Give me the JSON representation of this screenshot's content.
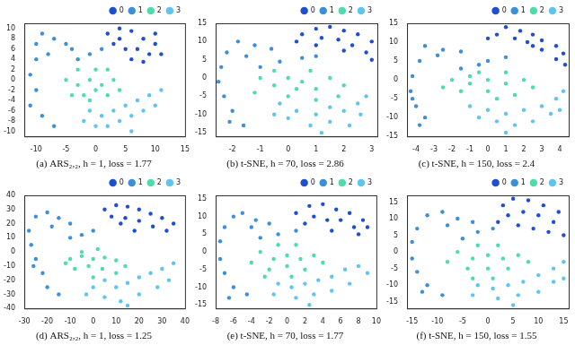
{
  "chart_data": [
    {
      "type": "scatter",
      "title": "(a) ARS₂,₂, h = 1, loss = 1.77",
      "xlim": [
        -12,
        15
      ],
      "xticks": [
        -10,
        -5,
        0,
        5,
        10,
        15
      ],
      "ylim": [
        -11,
        11
      ],
      "yticks": [
        -10,
        -8,
        -6,
        -4,
        -2,
        0,
        2,
        4,
        6,
        8,
        10
      ],
      "grid": false,
      "legend": "upper right",
      "marker": "circle",
      "series": [
        {
          "name": "0",
          "color": "#1f4fd1",
          "x": [
            2,
            4,
            6,
            8,
            10,
            3,
            5,
            7,
            9,
            11,
            6,
            4,
            8,
            10
          ],
          "values": [
            9,
            10,
            9.5,
            8,
            7,
            7,
            6,
            6,
            5,
            5,
            4,
            8,
            3.5,
            9
          ]
        },
        {
          "name": "1",
          "color": "#3d8fd9",
          "x": [
            -9,
            -7,
            -5,
            -10,
            -8,
            -11,
            -10,
            -11,
            -9,
            -7,
            -3,
            -1,
            1,
            -4,
            -10
          ],
          "values": [
            9,
            8,
            7,
            4,
            5,
            1,
            -2,
            -5,
            -7,
            -9,
            4,
            5,
            6,
            6,
            7
          ]
        },
        {
          "name": "2",
          "color": "#4fdbb0",
          "x": [
            -5,
            -3,
            -1,
            1,
            3,
            -4,
            -2,
            0,
            2,
            -3,
            0,
            2,
            -1,
            4
          ],
          "values": [
            0,
            -1,
            0,
            -1,
            0,
            -3,
            -3,
            -2,
            -3,
            2,
            2,
            2,
            -4,
            -2
          ]
        },
        {
          "name": "3",
          "color": "#5ec6ee",
          "x": [
            -1,
            1,
            3,
            5,
            7,
            9,
            11,
            2,
            4,
            6,
            8,
            0,
            10,
            -2,
            6
          ],
          "values": [
            -6,
            -7,
            -6,
            -5,
            -4,
            -3,
            -2,
            -9,
            -8,
            -7,
            -6,
            -9,
            -5,
            -8,
            -10
          ]
        }
      ]
    },
    {
      "type": "scatter",
      "title": "(b) t-SNE, h = 70, loss = 2.86",
      "xlim": [
        -2.6,
        3.2
      ],
      "xticks": [
        -2,
        -1,
        0,
        1,
        2,
        3
      ],
      "ylim": [
        -16,
        15
      ],
      "yticks": [
        -15,
        -10,
        -5,
        0,
        5,
        10,
        15
      ],
      "grid": false,
      "legend": "upper right",
      "marker": "circle",
      "series": [
        {
          "name": "0",
          "color": "#1f4fd1",
          "x": [
            0.5,
            1,
            1.5,
            2,
            2.5,
            3,
            1.2,
            1.8,
            2.3,
            2.8,
            1,
            2,
            3,
            0.3
          ],
          "values": [
            12,
            13.5,
            14,
            13,
            12,
            10,
            11,
            10.5,
            9,
            7,
            9,
            7.5,
            5,
            10
          ]
        },
        {
          "name": "1",
          "color": "#3d8fd9",
          "x": [
            -1.8,
            -1.2,
            -0.6,
            -2.2,
            -2.4,
            -2.5,
            -2.3,
            -2,
            -1.6,
            -1,
            -0.3,
            0.5,
            -1.5,
            -2.1,
            1
          ],
          "values": [
            10,
            9,
            8,
            7,
            3,
            -1,
            -5,
            -9,
            -13,
            3,
            4.5,
            5.5,
            6,
            -12,
            6
          ]
        },
        {
          "name": "2",
          "color": "#4fdbb0",
          "x": [
            -1,
            -0.5,
            0,
            0.5,
            1,
            1.5,
            2,
            -1.2,
            0,
            1,
            -0.5,
            0.8,
            1.8,
            0.3
          ],
          "values": [
            0,
            -2,
            0,
            -1,
            -3,
            0,
            -2,
            -4,
            -5,
            -6,
            2,
            2,
            -5,
            -3
          ]
        },
        {
          "name": "3",
          "color": "#5ec6ee",
          "x": [
            -0.3,
            0.3,
            1,
            1.5,
            2,
            2.5,
            2.8,
            0.8,
            1.5,
            2.2,
            0,
            2.6,
            1.2,
            -0.5
          ],
          "values": [
            -7,
            -9,
            -10,
            -8,
            -9,
            -7,
            -5,
            -13,
            -12,
            -13,
            -11,
            -10,
            -15,
            -10
          ]
        }
      ]
    },
    {
      "type": "scatter",
      "title": "(c) t-SNE, h = 150, loss = 2.4",
      "xlim": [
        -4.5,
        4.5
      ],
      "xticks": [
        -4,
        -3,
        -2,
        -1,
        0,
        1,
        2,
        3,
        4
      ],
      "ylim": [
        -15,
        15
      ],
      "yticks": [
        -15,
        -10,
        -5,
        0,
        5,
        10,
        15
      ],
      "grid": false,
      "legend": "upper right",
      "marker": "circle",
      "series": [
        {
          "name": "0",
          "color": "#1f4fd1",
          "x": [
            0.5,
            1,
            1.8,
            2.5,
            3,
            3.8,
            4.2,
            1.5,
            2.2,
            3,
            3.8,
            2.5,
            0,
            4.3
          ],
          "values": [
            12,
            14,
            13,
            12,
            10.5,
            9,
            7,
            11,
            10,
            8,
            5.5,
            9,
            11,
            4
          ]
        },
        {
          "name": "1",
          "color": "#3d8fd9",
          "x": [
            -3.5,
            -2.5,
            -1.5,
            -3.8,
            -4.2,
            -4.3,
            -4,
            -3.5,
            -1.5,
            0,
            1,
            -0.5,
            -2.8,
            -3.8,
            -4.2
          ],
          "values": [
            9,
            8,
            7.5,
            5,
            1,
            -3,
            -7,
            -10,
            3,
            5,
            6,
            4,
            6.5,
            -12,
            -5
          ]
        },
        {
          "name": "2",
          "color": "#4fdbb0",
          "x": [
            -2,
            -1,
            0,
            1,
            2,
            -1.5,
            0,
            1.5,
            -0.5,
            1,
            2.5,
            -2.5,
            0.5,
            -1
          ],
          "values": [
            0,
            -1,
            0,
            -1,
            0,
            -3,
            -3,
            -4,
            2,
            2,
            -2,
            -2,
            -5,
            1
          ]
        },
        {
          "name": "3",
          "color": "#5ec6ee",
          "x": [
            -1,
            0,
            1,
            2,
            3,
            3.8,
            4.2,
            0.5,
            1.5,
            2.5,
            3.5,
            -0.5,
            1,
            4
          ],
          "values": [
            -7,
            -8,
            -9,
            -8,
            -7,
            -5,
            -3,
            -11,
            -12,
            -11,
            -9,
            -10,
            -14,
            -8
          ]
        }
      ]
    },
    {
      "type": "scatter",
      "title": "(d) ARS₂,₂, h = 1, loss = 1.25",
      "xlim": [
        -30,
        40
      ],
      "xticks": [
        -30,
        -20,
        -10,
        0,
        10,
        20,
        30,
        40
      ],
      "ylim": [
        -40,
        40
      ],
      "yticks": [
        -40,
        -30,
        -20,
        -10,
        0,
        10,
        20,
        30,
        40
      ],
      "grid": false,
      "legend": "upper right",
      "marker": "circle",
      "series": [
        {
          "name": "0",
          "color": "#1f4fd1",
          "x": [
            5,
            10,
            15,
            20,
            25,
            30,
            35,
            8,
            14,
            20,
            26,
            32,
            18,
            12
          ],
          "values": [
            30,
            33,
            32,
            30,
            27,
            24,
            20,
            25,
            24,
            22,
            18,
            15,
            15,
            20
          ]
        },
        {
          "name": "1",
          "color": "#3d8fd9",
          "x": [
            -25,
            -20,
            -15,
            -10,
            -28,
            -27,
            -25,
            -22,
            -20,
            -15,
            -10,
            -5,
            0,
            -18,
            -26
          ],
          "values": [
            25,
            28,
            24,
            20,
            15,
            5,
            -5,
            -15,
            -25,
            -30,
            10,
            12,
            15,
            18,
            -10
          ]
        },
        {
          "name": "2",
          "color": "#4fdbb0",
          "x": [
            -10,
            -5,
            0,
            5,
            10,
            -8,
            -2,
            4,
            10,
            -5,
            2,
            -12,
            0,
            14
          ],
          "values": [
            -5,
            -3,
            -5,
            -4,
            -6,
            -12,
            -10,
            -12,
            -15,
            0,
            2,
            -8,
            -18,
            -10
          ]
        },
        {
          "name": "3",
          "color": "#5ec6ee",
          "x": [
            0,
            5,
            10,
            15,
            20,
            25,
            30,
            35,
            5,
            12,
            20,
            28,
            -3,
            15,
            33
          ],
          "values": [
            -25,
            -20,
            -25,
            -22,
            -18,
            -15,
            -12,
            -8,
            -32,
            -35,
            -30,
            -25,
            -30,
            -38,
            -20
          ]
        }
      ]
    },
    {
      "type": "scatter",
      "title": "(e) t-SNE, h = 70, loss = 1.77",
      "xlim": [
        -8,
        10
      ],
      "xticks": [
        -8,
        -6,
        -4,
        -2,
        0,
        2,
        4,
        6,
        8,
        10
      ],
      "ylim": [
        -16,
        16
      ],
      "yticks": [
        -15,
        -10,
        -5,
        0,
        5,
        10,
        15
      ],
      "grid": false,
      "legend": "upper right",
      "marker": "circle",
      "series": [
        {
          "name": "0",
          "color": "#1f4fd1",
          "x": [
            1,
            2.5,
            4,
            5.5,
            7,
            8.5,
            9,
            3,
            4.5,
            6,
            7.5,
            5,
            2,
            8
          ],
          "values": [
            11,
            13,
            13.5,
            12,
            11,
            9,
            7,
            10,
            9,
            9,
            7,
            6,
            8,
            5
          ]
        },
        {
          "name": "1",
          "color": "#3d8fd9",
          "x": [
            -6,
            -5,
            -3.5,
            -2,
            -7,
            -7.5,
            -7.5,
            -7,
            -6,
            -4.5,
            -3,
            -1,
            1,
            -6.5,
            -4
          ],
          "values": [
            10,
            11,
            9,
            8,
            7,
            3,
            -2,
            -6,
            -10,
            -12,
            4,
            5,
            6,
            -13,
            7
          ]
        },
        {
          "name": "2",
          "color": "#4fdbb0",
          "x": [
            -3,
            -1.5,
            0,
            1.5,
            3,
            -2,
            0,
            2,
            -1,
            1,
            4,
            -4,
            0.5,
            -2.5
          ],
          "values": [
            0,
            -2,
            -1,
            -2,
            -1,
            -5,
            -4,
            -5,
            2,
            2,
            -3,
            -3,
            -7,
            -7
          ]
        },
        {
          "name": "3",
          "color": "#5ec6ee",
          "x": [
            -1,
            0.5,
            2,
            3.5,
            5,
            6.5,
            8,
            1,
            3,
            5,
            7,
            9,
            2.5,
            -1.5
          ],
          "values": [
            -9,
            -10,
            -9,
            -8,
            -7,
            -5,
            -4,
            -13,
            -12,
            -11,
            -9,
            -6,
            -15,
            -12
          ]
        }
      ]
    },
    {
      "type": "scatter",
      "title": "(f) t-SNE, h = 150, loss = 1.55",
      "xlim": [
        -16,
        16
      ],
      "xticks": [
        -15,
        -10,
        -5,
        0,
        5,
        10,
        15
      ],
      "ylim": [
        -17,
        17
      ],
      "yticks": [
        -15,
        -10,
        -5,
        0,
        5,
        10,
        15
      ],
      "grid": false,
      "legend": "upper right",
      "marker": "circle",
      "series": [
        {
          "name": "0",
          "color": "#1f4fd1",
          "x": [
            3,
            5,
            8,
            11,
            14,
            4,
            7,
            10,
            13,
            6,
            9,
            12,
            15,
            2
          ],
          "values": [
            14,
            16,
            15.5,
            14,
            12,
            11,
            12,
            11,
            9,
            8,
            7,
            6,
            5,
            9
          ]
        },
        {
          "name": "1",
          "color": "#3d8fd9",
          "x": [
            -12,
            -9,
            -6,
            -3,
            -14,
            -15,
            -15,
            -14,
            -12,
            -9,
            -5,
            -2,
            1,
            -13,
            -8
          ],
          "values": [
            11,
            12,
            10,
            9,
            7,
            3,
            -2,
            -6,
            -10,
            -13,
            4,
            6,
            7,
            -12,
            8
          ]
        },
        {
          "name": "2",
          "color": "#4fdbb0",
          "x": [
            -6,
            -3,
            0,
            3,
            6,
            -4,
            0,
            4,
            -2,
            2,
            8,
            -8,
            1,
            -3
          ],
          "values": [
            0,
            -2,
            -1,
            -2,
            -1,
            -5,
            -5,
            -5,
            2,
            2,
            -3,
            -3,
            -8,
            -8
          ]
        },
        {
          "name": "3",
          "color": "#5ec6ee",
          "x": [
            -2,
            1,
            4,
            7,
            10,
            13,
            15,
            2,
            6,
            10,
            13,
            -3,
            5,
            15
          ],
          "values": [
            -10,
            -11,
            -10,
            -9,
            -7,
            -5,
            -3,
            -14,
            -13,
            -12,
            -9,
            -13,
            -16,
            -8
          ]
        }
      ]
    }
  ]
}
